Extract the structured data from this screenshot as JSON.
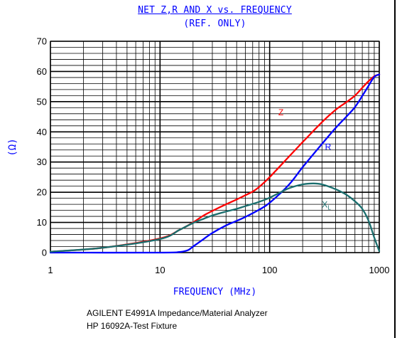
{
  "title": "NET Z,R AND X vs. FREQUENCY",
  "subtitle": "(REF. ONLY)",
  "notes": [
    "AGILENT E4991A Impedance/Material Analyzer",
    "HP 16092A-Test Fixture"
  ],
  "chart_data": {
    "type": "line",
    "title": "NET Z,R AND X vs. FREQUENCY",
    "subtitle": "(REF. ONLY)",
    "xlabel": "FREQUENCY (MHz)",
    "ylabel": "(Ω)",
    "xscale": "log",
    "xlim": [
      1,
      1000
    ],
    "ylim": [
      0,
      70
    ],
    "x_ticks": [
      "1",
      "10",
      "100",
      "1000"
    ],
    "y_ticks": [
      "0",
      "10",
      "20",
      "30",
      "40",
      "50",
      "60",
      "70"
    ],
    "grid": true,
    "legend": "labels on curves",
    "series": [
      {
        "name": "Z",
        "color": "#ff0000",
        "x": [
          1,
          3,
          10,
          15,
          20,
          25,
          30,
          40,
          50,
          60,
          70,
          80,
          100,
          150,
          200,
          300,
          400,
          500,
          600,
          700,
          800,
          900,
          1000
        ],
        "y": [
          0.3,
          1.6,
          4.7,
          7.5,
          10.0,
          12.3,
          13.8,
          16.0,
          17.6,
          19.0,
          20.2,
          21.7,
          25.0,
          31.8,
          36.6,
          43.2,
          47.3,
          49.8,
          52.0,
          54.6,
          56.8,
          58.4,
          59.0
        ]
      },
      {
        "name": "R",
        "color": "#0000ff",
        "x": [
          1,
          10,
          15,
          18,
          20,
          25,
          30,
          40,
          50,
          60,
          80,
          100,
          150,
          200,
          300,
          400,
          500,
          600,
          700,
          800,
          900,
          1000
        ],
        "y": [
          0,
          0,
          0.2,
          0.8,
          2.0,
          4.5,
          6.5,
          9.0,
          10.5,
          11.8,
          14.2,
          16.5,
          22.5,
          28.3,
          36.0,
          41.3,
          45.0,
          48.2,
          51.9,
          55.3,
          58.2,
          59.0
        ]
      },
      {
        "name": "X",
        "label_subscript": "L",
        "color": "#1a6e6e",
        "x": [
          1,
          3,
          10,
          15,
          20,
          25,
          30,
          40,
          50,
          60,
          80,
          100,
          150,
          200,
          250,
          300,
          400,
          500,
          600,
          700,
          800,
          900,
          1000
        ],
        "y": [
          0.3,
          1.6,
          4.5,
          7.5,
          9.8,
          11.2,
          12.3,
          13.6,
          14.5,
          15.4,
          16.8,
          18.2,
          21.3,
          22.6,
          22.9,
          22.6,
          21.0,
          19.2,
          17.0,
          14.5,
          10.5,
          5.0,
          0.5
        ]
      }
    ]
  }
}
